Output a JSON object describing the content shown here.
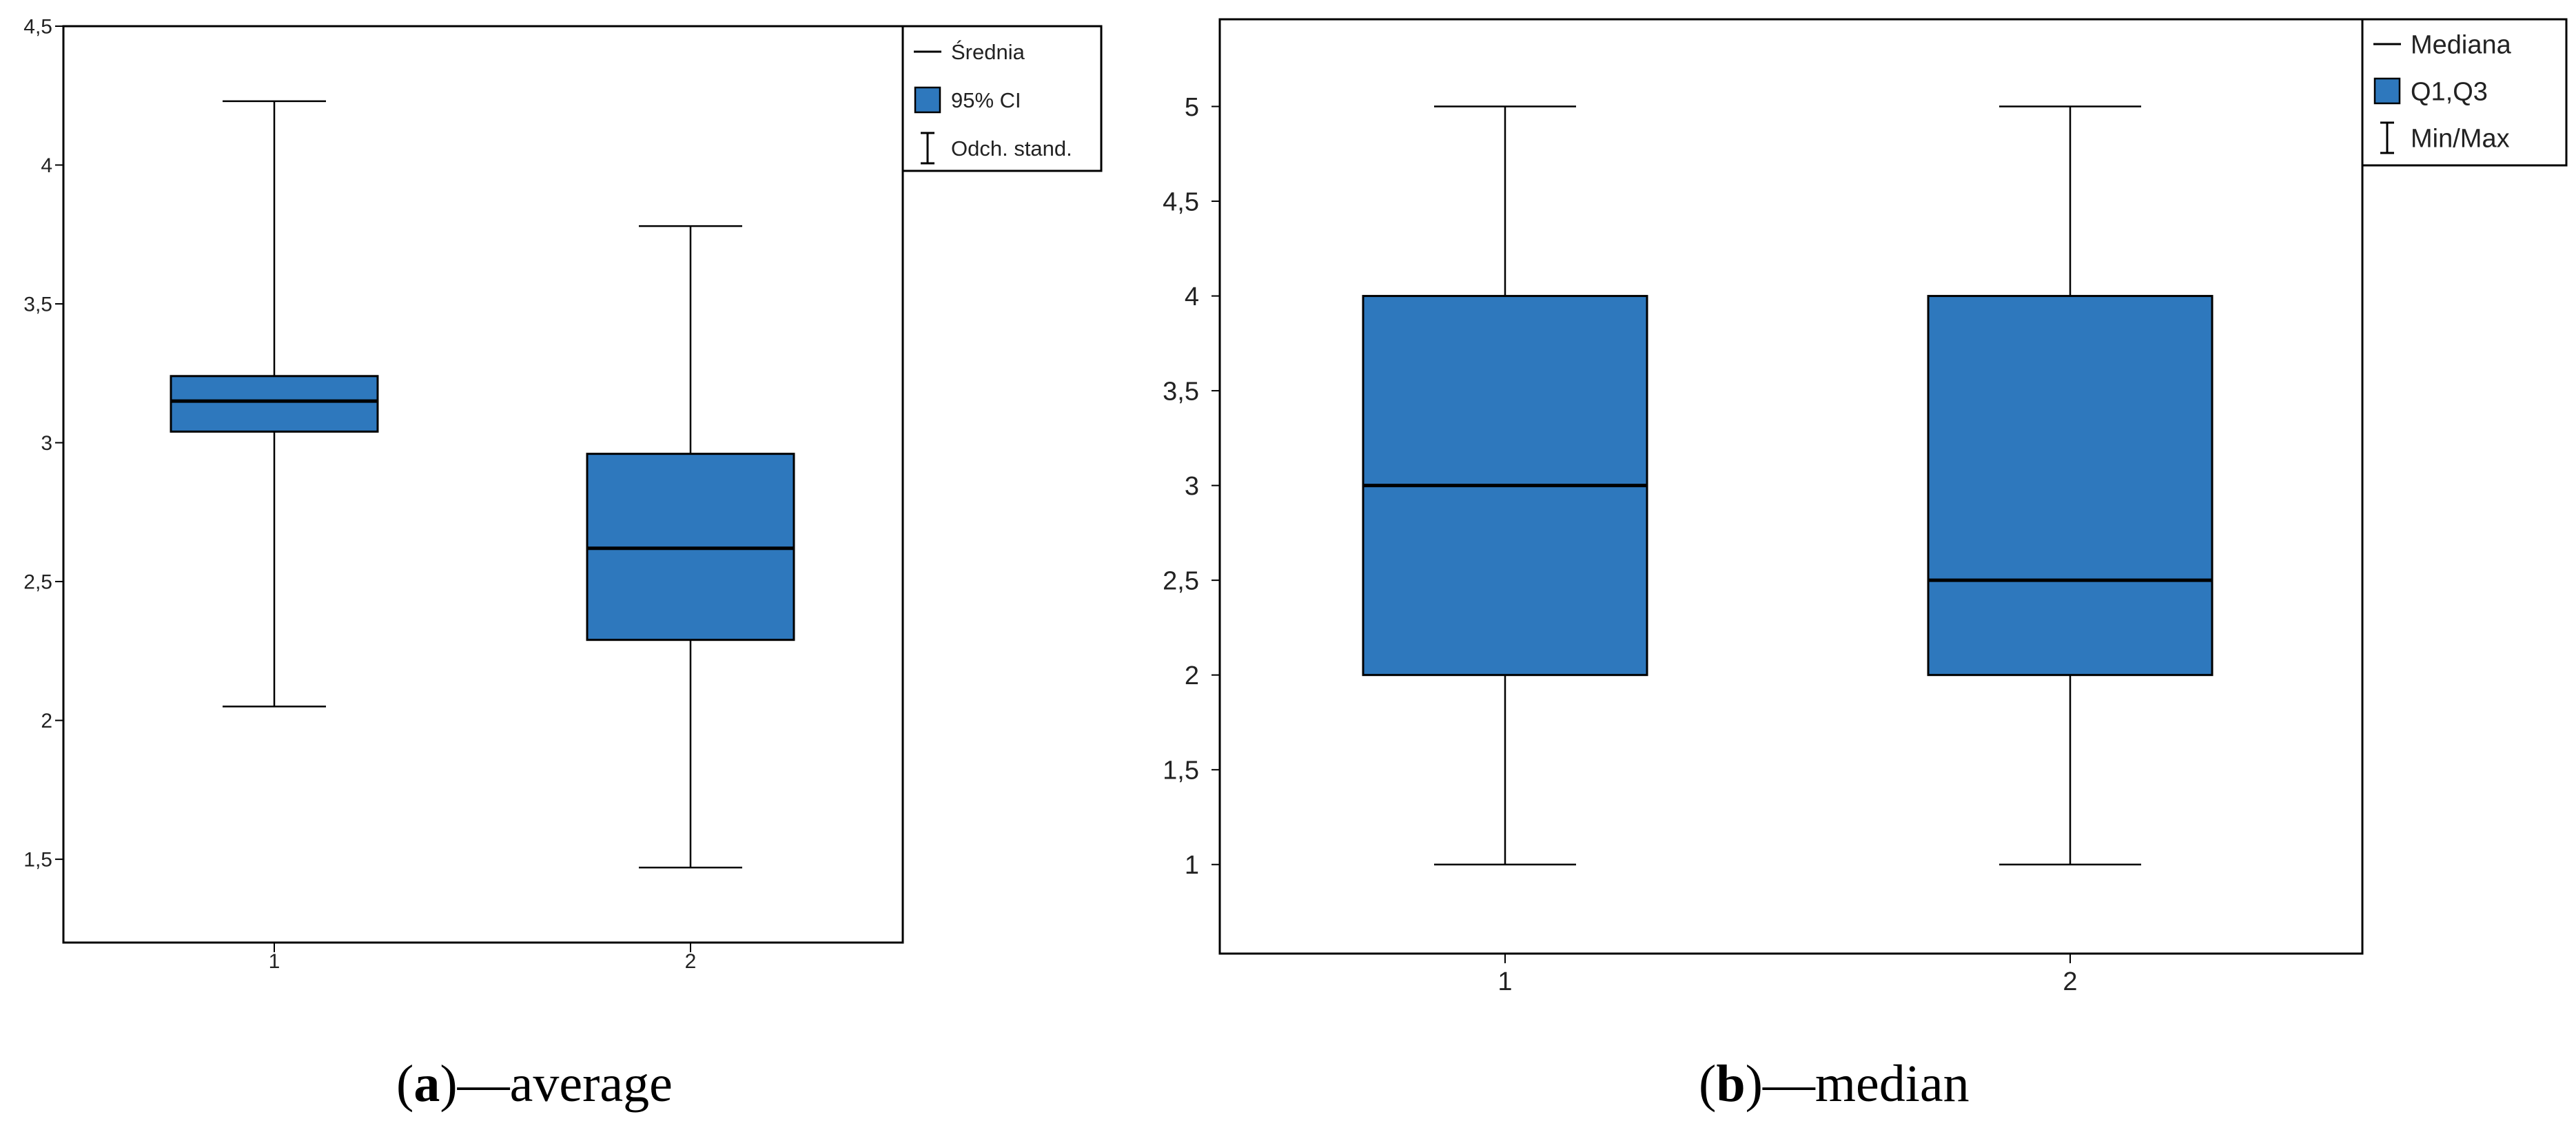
{
  "colors": {
    "box_fill": "#2e78bd",
    "stroke": "#000000",
    "background": "#ffffff"
  },
  "panels": [
    {
      "caption_letter": "a",
      "caption_text": "average"
    },
    {
      "caption_letter": "b",
      "caption_text": "median"
    }
  ],
  "chart_data": [
    {
      "type": "box",
      "categories": [
        "1",
        "2"
      ],
      "ylim": [
        1.2,
        4.5
      ],
      "y_ticks": [
        "1,5",
        "2",
        "2,5",
        "3",
        "3,5",
        "4",
        "4,5"
      ],
      "y_tick_values": [
        1.5,
        2,
        2.5,
        3,
        3.5,
        4,
        4.5
      ],
      "boxes": [
        {
          "center": 3.15,
          "box_low": 3.04,
          "box_high": 3.24,
          "whisker_low": 2.05,
          "whisker_high": 4.23
        },
        {
          "center": 2.62,
          "box_low": 2.29,
          "box_high": 2.96,
          "whisker_low": 1.47,
          "whisker_high": 3.78
        }
      ],
      "legend": [
        {
          "label": "Średnia",
          "symbol": "line"
        },
        {
          "label": "95% CI",
          "symbol": "box"
        },
        {
          "label": "Odch. stand.",
          "symbol": "whisker"
        }
      ],
      "legend_position": "top-right",
      "grid": false
    },
    {
      "type": "box",
      "categories": [
        "1",
        "2"
      ],
      "ylim": [
        0.53,
        5.46
      ],
      "y_ticks": [
        "1",
        "1,5",
        "2",
        "2,5",
        "3",
        "3,5",
        "4",
        "4,5",
        "5"
      ],
      "y_tick_values": [
        1,
        1.5,
        2,
        2.5,
        3,
        3.5,
        4,
        4.5,
        5
      ],
      "boxes": [
        {
          "center": 3.0,
          "box_low": 2.0,
          "box_high": 4.0,
          "whisker_low": 1.0,
          "whisker_high": 5.0
        },
        {
          "center": 2.5,
          "box_low": 2.0,
          "box_high": 4.0,
          "whisker_low": 1.0,
          "whisker_high": 5.0
        }
      ],
      "legend": [
        {
          "label": "Mediana",
          "symbol": "line"
        },
        {
          "label": "Q1,Q3",
          "symbol": "box"
        },
        {
          "label": "Min/Max",
          "symbol": "whisker"
        }
      ],
      "legend_position": "top-right",
      "grid": false
    }
  ]
}
